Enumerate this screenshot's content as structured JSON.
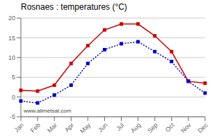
{
  "chart_data": {
    "type": "line",
    "title": "Rosnaes : temperatures (°C)",
    "categories": [
      "Jan",
      "Feb",
      "Mar",
      "Apr",
      "May",
      "Jun",
      "Jul",
      "Aug",
      "Sep",
      "Oct",
      "Nov",
      "Dec"
    ],
    "series": [
      {
        "color": "#cc0000",
        "values": [
          1.7,
          1.5,
          3.0,
          8.5,
          13.0,
          17.0,
          18.5,
          18.5,
          15.5,
          11.5,
          4.0,
          3.5
        ],
        "marker": "square",
        "line_style": "solid"
      },
      {
        "color": "#0000cc",
        "values": [
          -1.0,
          -1.5,
          0.5,
          3.0,
          8.5,
          12.0,
          13.5,
          14.0,
          11.5,
          9.0,
          4.0,
          1.0
        ],
        "marker": "square",
        "line_style": "dotted"
      }
    ],
    "ylim": [
      -5,
      20
    ],
    "yticks": [
      -5,
      0,
      5,
      10,
      15,
      20
    ],
    "grid": "y",
    "annotations": [
      "www.allmetsat.com"
    ]
  }
}
